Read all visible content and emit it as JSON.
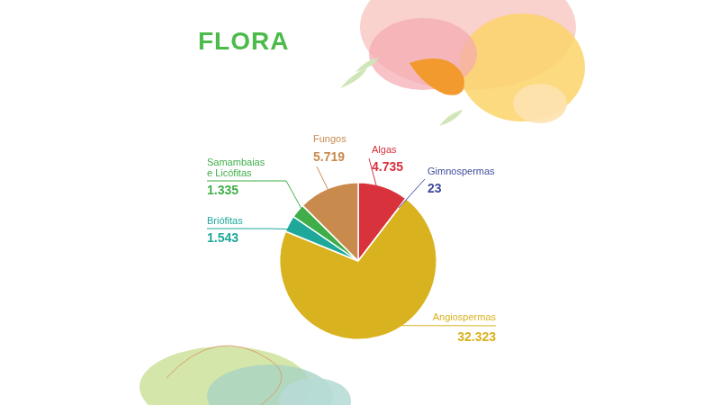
{
  "chart_data": {
    "type": "pie",
    "title": "FLORA",
    "categories": [
      "Algas",
      "Gimnospermas",
      "Angiospermas",
      "Briófitas",
      "Samambaias e Licófitas",
      "Fungos"
    ],
    "values": [
      4735,
      23,
      32323,
      1543,
      1335,
      5719
    ],
    "value_labels": [
      "4.735",
      "23",
      "32.323",
      "1.543",
      "1.335",
      "5.719"
    ],
    "colors": [
      "#d8323c",
      "#3f4d9c",
      "#d9b21f",
      "#1fa89a",
      "#3fae49",
      "#c98a4e"
    ],
    "data_labels": true
  }
}
